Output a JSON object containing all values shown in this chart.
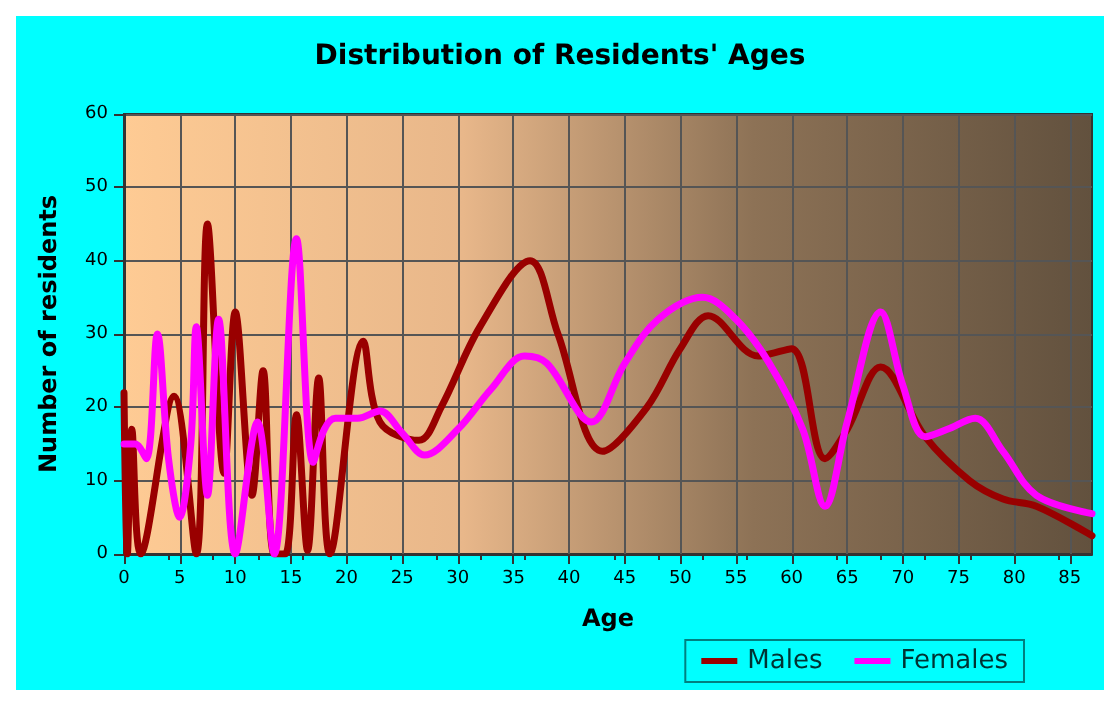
{
  "chart_data": {
    "type": "line",
    "title": "Distribution of Residents' Ages",
    "xlabel": "Age",
    "ylabel": "Number of residents",
    "xlim": [
      0,
      87
    ],
    "xticks": [
      0,
      5,
      10,
      15,
      20,
      25,
      30,
      35,
      40,
      45,
      50,
      55,
      60,
      65,
      70,
      75,
      80,
      85
    ],
    "ylim": [
      0,
      60
    ],
    "yticks": [
      0,
      10,
      20,
      30,
      40,
      50,
      60
    ],
    "grid": true,
    "legend": "bottom right",
    "marker": "none",
    "line_style": "solid",
    "series": [
      {
        "name": "Males",
        "color": "#990000",
        "x": [
          0,
          0.3,
          0.7,
          1.5,
          4.5,
          6.5,
          7.5,
          9,
          10,
          11.5,
          12.5,
          13.5,
          14.5,
          15.5,
          16.5,
          17.5,
          18.5,
          21.5,
          23,
          26.5,
          28.5,
          32,
          36.5,
          39,
          43,
          47,
          50,
          52.5,
          57,
          60,
          63,
          65,
          68,
          72,
          76,
          79,
          82,
          87
        ],
        "values": [
          22,
          0,
          17,
          0,
          21.5,
          0,
          45,
          11,
          33,
          8,
          25,
          0,
          0,
          19,
          0.5,
          24,
          0,
          29,
          18,
          15.5,
          20,
          31,
          40,
          30,
          14,
          20,
          28,
          32.5,
          27,
          28,
          13,
          17,
          25.5,
          16,
          10,
          7.5,
          6.5,
          2.5
        ]
      },
      {
        "name": "Females",
        "color": "#ff00ff",
        "x": [
          0,
          1,
          2,
          3,
          4,
          5,
          6,
          6.5,
          7.5,
          8.5,
          10,
          12,
          13.5,
          15.5,
          17,
          18,
          19,
          21,
          23,
          25,
          27,
          30,
          33,
          36,
          38,
          42,
          45,
          48,
          52,
          55,
          58,
          61,
          63,
          65,
          68,
          70,
          72,
          74,
          76.5,
          79,
          82,
          87
        ],
        "values": [
          15,
          15,
          13,
          30,
          13,
          5,
          15,
          31,
          8,
          32,
          0,
          18,
          0,
          43,
          12.5,
          17,
          18.5,
          18.5,
          19.5,
          16.5,
          13.5,
          17,
          22.5,
          27,
          26,
          18,
          26,
          32,
          35,
          32,
          26,
          17,
          6.5,
          18,
          33,
          23,
          16,
          17,
          18.5,
          14,
          8,
          5.5
        ]
      }
    ]
  }
}
